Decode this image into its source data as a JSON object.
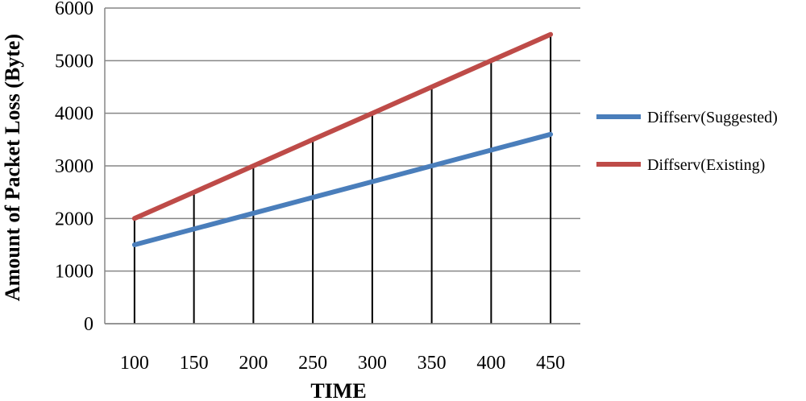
{
  "chart_data": {
    "type": "line",
    "title": "",
    "xlabel": "TIME",
    "ylabel": "Amount of Packet Loss (Byte)",
    "categories": [
      "100",
      "150",
      "200",
      "250",
      "300",
      "350",
      "400",
      "450"
    ],
    "ylim": [
      0,
      6000
    ],
    "yticks": [
      "0",
      "1000",
      "2000",
      "3000",
      "4000",
      "5000",
      "6000"
    ],
    "grid": true,
    "legend_position": "right",
    "series": [
      {
        "name": "Diffserv(Suggested)",
        "color": "#4a7ebb",
        "values": [
          1500,
          1800,
          2100,
          2400,
          2700,
          3000,
          3300,
          3600
        ]
      },
      {
        "name": "Diffserv(Existing)",
        "color": "#be4b48",
        "values": [
          2000,
          2500,
          3000,
          3500,
          4000,
          4500,
          5000,
          5500
        ]
      }
    ]
  }
}
